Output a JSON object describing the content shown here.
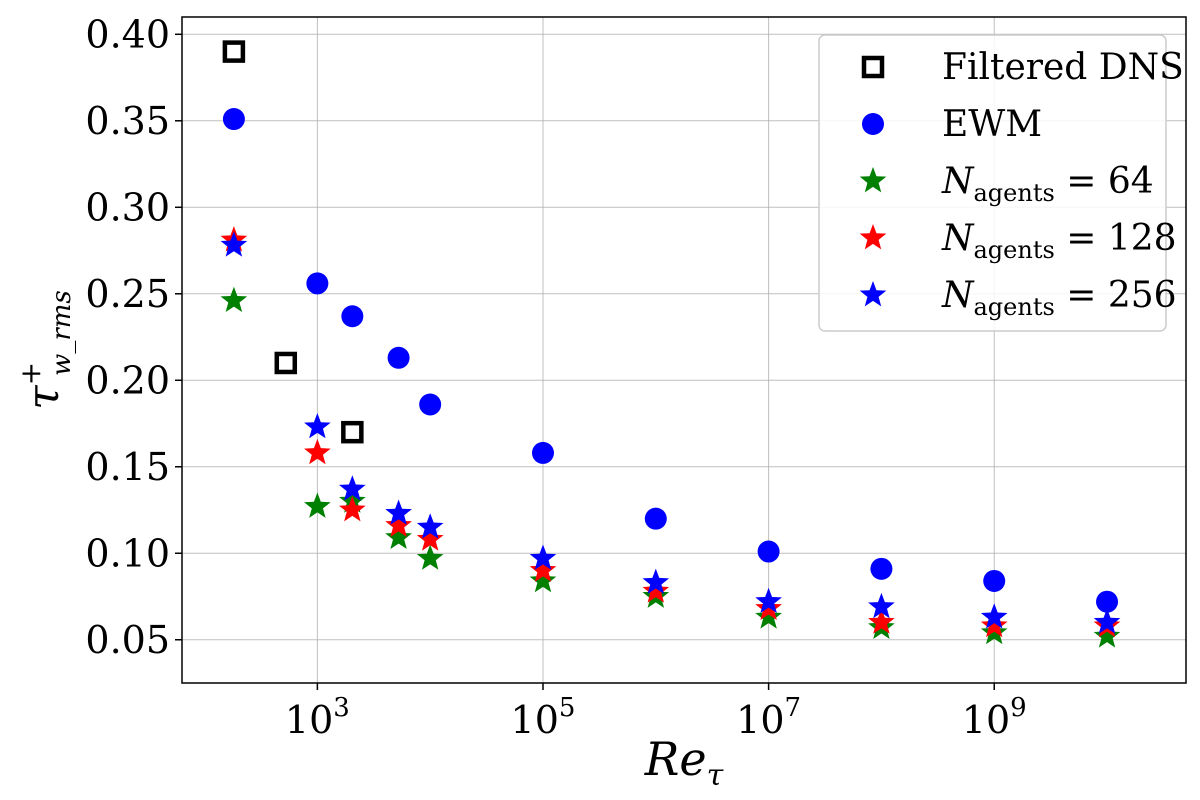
{
  "chart_data": {
    "type": "scatter",
    "xscale": "log",
    "xlabel": "Re",
    "xlabel_sub": "τ",
    "ylabel": "τ",
    "ylabel_sup": "+",
    "ylabel_sub": "w_rms",
    "xlim_log10": [
      1.8,
      10.7
    ],
    "ylim": [
      0.025,
      0.41
    ],
    "grid": true,
    "legend_position": "top-right",
    "x_tick_exponents": [
      "3",
      "5",
      "7",
      "9"
    ],
    "x_tick_base": "10",
    "y_ticks": [
      "0.05",
      "0.10",
      "0.15",
      "0.20",
      "0.25",
      "0.30",
      "0.35",
      "0.40"
    ],
    "series": [
      {
        "name": "Filtered DNS",
        "marker": "square",
        "color": "#000000",
        "x_log10": [
          2.26,
          2.72,
          3.31
        ],
        "values": [
          0.39,
          0.21,
          0.17
        ]
      },
      {
        "name": "EWM",
        "marker": "circle",
        "color": "#0000ff",
        "x_log10": [
          2.26,
          3.0,
          3.31,
          3.72,
          4.0,
          5.0,
          6.0,
          7.0,
          8.0,
          9.0,
          10.0
        ],
        "values": [
          0.351,
          0.256,
          0.237,
          0.213,
          0.186,
          0.158,
          0.12,
          0.101,
          0.091,
          0.084,
          0.072
        ]
      },
      {
        "name": "N_agents = 64",
        "legend_main": "N",
        "legend_sub": "agents",
        "legend_value": " = 64",
        "marker": "star",
        "color": "#008000",
        "x_log10": [
          2.26,
          3.0,
          3.31,
          3.72,
          4.0,
          5.0,
          6.0,
          7.0,
          8.0,
          9.0,
          10.0
        ],
        "values": [
          0.246,
          0.127,
          0.13,
          0.109,
          0.097,
          0.084,
          0.075,
          0.063,
          0.057,
          0.054,
          0.052
        ]
      },
      {
        "name": "N_agents = 128",
        "legend_main": "N",
        "legend_sub": "agents",
        "legend_value": " = 128",
        "marker": "star",
        "color": "#ff0000",
        "x_log10": [
          2.26,
          3.0,
          3.31,
          3.72,
          4.0,
          5.0,
          6.0,
          7.0,
          8.0,
          9.0,
          10.0
        ],
        "values": [
          0.281,
          0.158,
          0.125,
          0.116,
          0.108,
          0.09,
          0.078,
          0.068,
          0.06,
          0.058,
          0.058
        ]
      },
      {
        "name": "N_agents = 256",
        "legend_main": "N",
        "legend_sub": "agents",
        "legend_value": " = 256",
        "marker": "star",
        "color": "#0000ff",
        "x_log10": [
          2.26,
          3.0,
          3.31,
          3.72,
          4.0,
          5.0,
          6.0,
          7.0,
          8.0,
          9.0,
          10.0
        ],
        "values": [
          0.278,
          0.173,
          0.137,
          0.123,
          0.115,
          0.097,
          0.083,
          0.072,
          0.069,
          0.063,
          0.06
        ]
      }
    ]
  }
}
